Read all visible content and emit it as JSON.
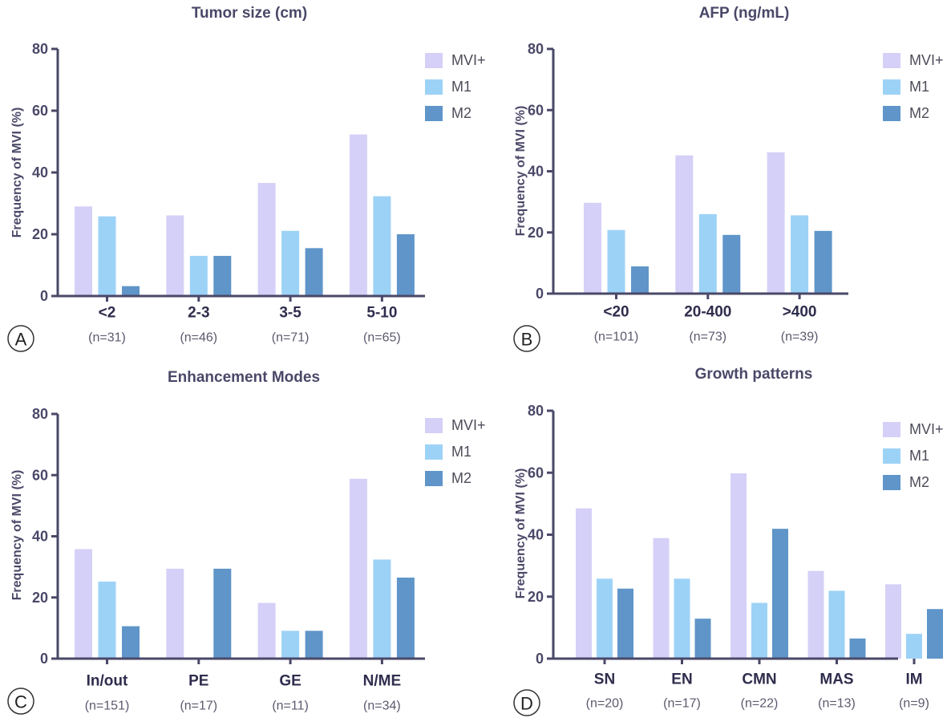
{
  "colors": {
    "mvi": "#d5d0f7",
    "m1": "#9dd2f7",
    "m2": "#5f95c9",
    "axis": "#4a4868",
    "text": "#4a4868"
  },
  "chart_data": [
    {
      "panel": "A",
      "type": "bar",
      "title": "Tumor size (cm)",
      "ylabel": "Frequency of MVI (%)",
      "ylim": [
        0,
        80
      ],
      "yticks": [
        0,
        20,
        40,
        60,
        80
      ],
      "legend_position": "top-right",
      "categories": [
        "<2",
        "2-3",
        "3-5",
        "5-10"
      ],
      "counts": [
        "(n=31)",
        "(n=46)",
        "(n=71)",
        "(n=65)"
      ],
      "series": [
        {
          "name": "MVI+",
          "values": [
            29.0,
            26.1,
            36.6,
            52.3
          ]
        },
        {
          "name": "M1",
          "values": [
            25.8,
            13.0,
            21.1,
            32.3
          ]
        },
        {
          "name": "M2",
          "values": [
            3.2,
            13.0,
            15.5,
            20.0
          ]
        }
      ]
    },
    {
      "panel": "B",
      "type": "bar",
      "title": "AFP  (ng/mL)",
      "ylabel": "Frequency of MVI (%)",
      "ylim": [
        0,
        80
      ],
      "yticks": [
        0,
        20,
        40,
        60,
        80
      ],
      "legend_position": "top-right",
      "categories": [
        "<20",
        "20-400",
        ">400"
      ],
      "counts": [
        "(n=101)",
        "(n=73)",
        "(n=39)"
      ],
      "series": [
        {
          "name": "MVI+",
          "values": [
            29.7,
            45.2,
            46.2
          ]
        },
        {
          "name": "M1",
          "values": [
            20.8,
            26.0,
            25.6
          ]
        },
        {
          "name": "M2",
          "values": [
            8.9,
            19.2,
            20.5
          ]
        }
      ]
    },
    {
      "panel": "C",
      "type": "bar",
      "title": "Enhancement Modes",
      "ylabel": "Frequency of MVI (%)",
      "ylim": [
        0,
        80
      ],
      "yticks": [
        0,
        20,
        40,
        60,
        80
      ],
      "legend_position": "top-right",
      "categories": [
        "In/out",
        "PE",
        "GE",
        "N/ME"
      ],
      "counts": [
        "(n=151)",
        "(n=17)",
        "(n=11)",
        "(n=34)"
      ],
      "series": [
        {
          "name": "MVI+",
          "values": [
            35.8,
            29.4,
            18.2,
            58.8
          ]
        },
        {
          "name": "M1",
          "values": [
            25.2,
            0,
            9.1,
            32.4
          ]
        },
        {
          "name": "M2",
          "values": [
            10.6,
            29.4,
            9.1,
            26.5
          ]
        }
      ]
    },
    {
      "panel": "D",
      "type": "bar",
      "title": "Growth patterns",
      "ylabel": "Frequency of MVI (%)",
      "ylim": [
        0,
        80
      ],
      "yticks": [
        0,
        20,
        40,
        60,
        80
      ],
      "legend_position": "top-right",
      "categories": [
        "SN",
        "EN",
        "CMN",
        "MAS",
        "IM"
      ],
      "counts": [
        "(n=20)",
        "(n=17)",
        "(n=22)",
        "(n=13)",
        "(n=9)"
      ],
      "series": [
        {
          "name": "MVI+",
          "values": [
            48.5,
            38.9,
            59.8,
            28.3,
            24.0
          ]
        },
        {
          "name": "M1",
          "values": [
            25.8,
            25.8,
            18.0,
            21.9,
            8.0
          ]
        },
        {
          "name": "M2",
          "values": [
            22.6,
            12.9,
            41.9,
            6.5,
            16.0
          ]
        }
      ]
    }
  ]
}
